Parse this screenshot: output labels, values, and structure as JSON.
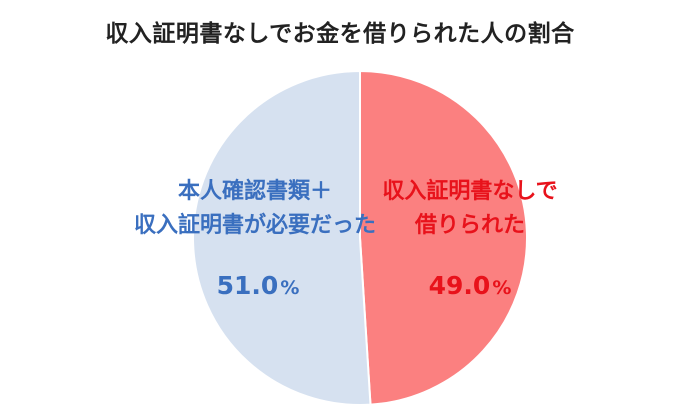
{
  "chart_data": {
    "type": "pie",
    "title": "収入証明書なしでお金を借りられた人の割合",
    "slices": [
      {
        "label_lines": [
          "収入証明書なしで",
          "借りられた"
        ],
        "value": 49.0,
        "value_text": "49.0",
        "unit": "%",
        "color": "#fb8080",
        "text_color": "#e8121b"
      },
      {
        "label_lines": [
          "本人確認書類＋",
          "収入証明書が必要だった"
        ],
        "value": 51.0,
        "value_text": "51.0",
        "unit": "%",
        "color": "#d6e1f0",
        "text_color": "#3a6fbf"
      }
    ],
    "start": "top",
    "direction": "clockwise"
  }
}
